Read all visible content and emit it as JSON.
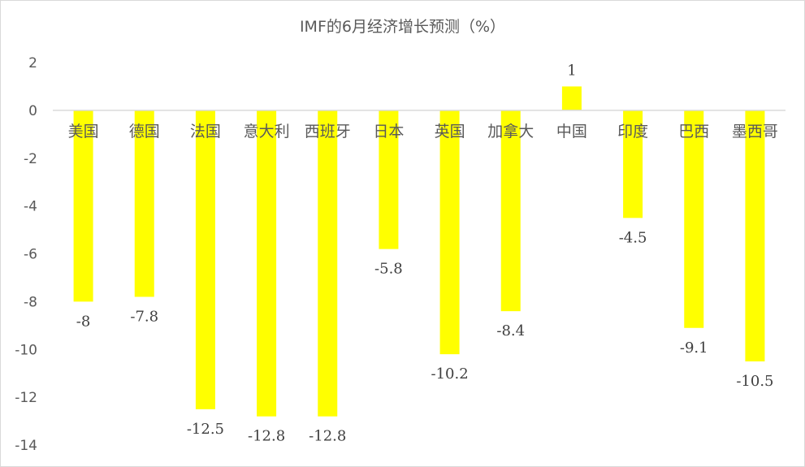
{
  "chart_data": {
    "type": "bar",
    "title": "IMF的6月经济增长预测（%）",
    "xlabel": "",
    "ylabel": "",
    "categories": [
      "美国",
      "德国",
      "法国",
      "意大利",
      "西班牙",
      "日本",
      "英国",
      "加拿大",
      "中国",
      "印度",
      "巴西",
      "墨西哥"
    ],
    "values": [
      -8,
      -7.8,
      -12.5,
      -12.8,
      -12.8,
      -5.8,
      -10.2,
      -8.4,
      1,
      -4.5,
      -9.1,
      -10.5
    ],
    "data_labels": [
      "-8",
      "-7.8",
      "-12.5",
      "-12.8",
      "-12.8",
      "-5.8",
      "-10.2",
      "-8.4",
      "1",
      "-4.5",
      "-9.1",
      "-10.5"
    ],
    "ylim": [
      -14,
      2
    ],
    "yticks": [
      2,
      0,
      -2,
      -4,
      -6,
      -8,
      -10,
      -12,
      -14
    ],
    "grid": false,
    "legend": "none",
    "bar_color": "#FFFF00",
    "axis_color": "#D9D9D9"
  }
}
